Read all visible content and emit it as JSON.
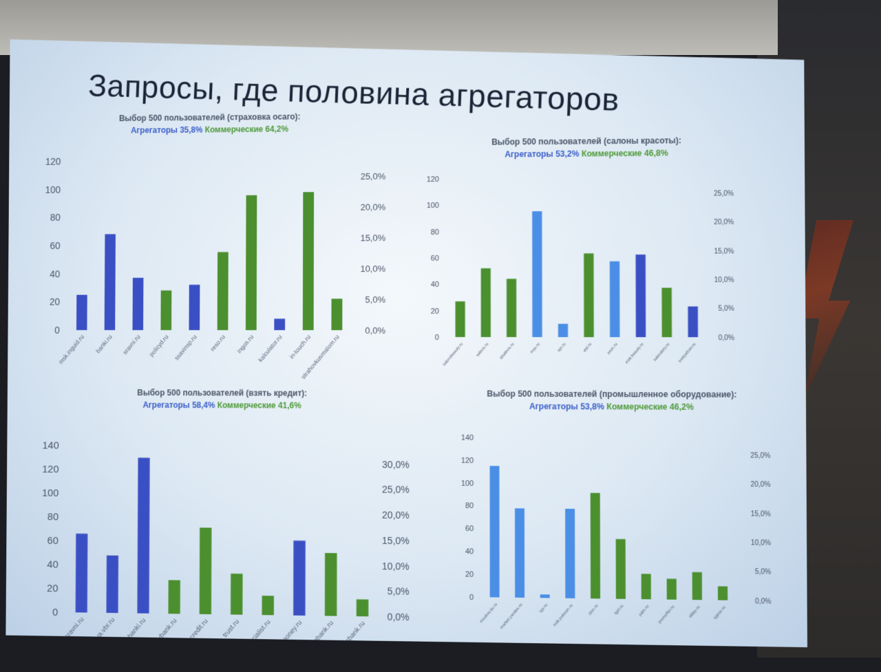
{
  "slide": {
    "title": "Запросы, где половина агрегаторов"
  },
  "colors": {
    "aggregator_dark": "#3b4fc4",
    "aggregator_light": "#4a8ee6",
    "commercial": "#4b8f2f"
  },
  "chart_data": [
    {
      "type": "bar",
      "title": "Выбор 500 пользователей (страховка осаго):",
      "subtitle_aggregators": "Агрегаторы 35,8%",
      "subtitle_commercial": "Коммерческие 64,2%",
      "ylim": [
        0,
        120
      ],
      "yticks": [
        "0",
        "20",
        "40",
        "60",
        "80",
        "100",
        "120"
      ],
      "y2ticks": [
        "0,0%",
        "5,0%",
        "10,0%",
        "15,0%",
        "20,0%",
        "25,0%"
      ],
      "categories": [
        "msk.inguid.ru",
        "banki.ru",
        "sravni.ru",
        "policyd.ru",
        "ssavinsp.ru",
        "reso.ru",
        "ingos.ru",
        "kalculator.ru",
        "in-touch.ru",
        "strahovkusmalom.ru"
      ],
      "values": [
        25,
        68,
        37,
        28,
        32,
        55,
        95,
        8,
        97,
        22
      ],
      "groups": [
        "aggregator_dark",
        "aggregator_dark",
        "aggregator_dark",
        "commercial",
        "aggregator_dark",
        "commercial",
        "commercial",
        "aggregator_dark",
        "commercial",
        "commercial"
      ]
    },
    {
      "type": "bar",
      "title": "Выбор 500 пользователей (салоны красоты):",
      "subtitle_aggregators": "Агрегаторы 53,2%",
      "subtitle_commercial": "Коммерческие 46,8%",
      "ylim": [
        0,
        120
      ],
      "yticks": [
        "0",
        "20",
        "40",
        "60",
        "80",
        "100",
        "120"
      ],
      "y2ticks": [
        "0,0%",
        "5,0%",
        "10,0%",
        "15,0%",
        "20,0%",
        "25,0%"
      ],
      "categories": [
        "salonsbeauty.ru",
        "salons.ru",
        "idsalons.ru",
        "msu.ru",
        "spr.ru",
        "etd.ru",
        "zoon.ru",
        "msk.beauty.ru",
        "salondery.ru",
        "svetyafcev.ru"
      ],
      "values": [
        27,
        52,
        44,
        95,
        10,
        63,
        57,
        62,
        37,
        23
      ],
      "groups": [
        "commercial",
        "commercial",
        "commercial",
        "aggregator_light",
        "aggregator_light",
        "commercial",
        "aggregator_light",
        "aggregator_dark",
        "commercial",
        "aggregator_dark"
      ]
    },
    {
      "type": "bar",
      "title": "Выбор 500 пользователей (взять кредит):",
      "subtitle_aggregators": "Агрегаторы 58,4%",
      "subtitle_commercial": "Коммерческие 41,6%",
      "ylim": [
        0,
        140
      ],
      "yticks": [
        "0",
        "20",
        "40",
        "60",
        "80",
        "100",
        "120",
        "140"
      ],
      "y2ticks": [
        "0,0%",
        "5,0%",
        "10,0%",
        "15,0%",
        "20,0%",
        "25,0%",
        "30,0%"
      ],
      "categories": [
        "sravni.ru",
        "moskva.vbr.ru",
        "banki.ru",
        "vbank.ru",
        "homecredit.ru",
        "trust.ru",
        "financialist.ru",
        "creditsmoney.ru",
        "pochtabank.ru",
        "rgsbank.ru"
      ],
      "values": [
        66,
        48,
        130,
        28,
        72,
        34,
        16,
        62,
        52,
        14
      ],
      "groups": [
        "aggregator_dark",
        "aggregator_dark",
        "aggregator_dark",
        "commercial",
        "commercial",
        "commercial",
        "commercial",
        "aggregator_dark",
        "commercial",
        "commercial"
      ]
    },
    {
      "type": "bar",
      "title": "Выбор 500 пользователей (промышленное оборудование):",
      "subtitle_aggregators": "Агрегаторы 53,8%",
      "subtitle_commercial": "Коммерческие 46,2%",
      "ylim": [
        0,
        140
      ],
      "yticks": [
        "0",
        "20",
        "40",
        "60",
        "80",
        "100",
        "120",
        "140"
      ],
      "y2ticks": [
        "0,0%",
        "5,0%",
        "10,0%",
        "15,0%",
        "20,0%",
        "25,0%"
      ],
      "categories": [
        "moskva.tiu.ru",
        "market.yandex.ru",
        "spr.ru",
        "msk.pulscen.ru",
        "stnn.ru",
        "tgirl.ru",
        "pdm.ru",
        "promoffer.ru",
        "sibkp.ru",
        "sgeso.ru"
      ],
      "values": [
        115,
        78,
        3,
        78,
        92,
        52,
        22,
        18,
        24,
        12
      ],
      "groups": [
        "aggregator_light",
        "aggregator_light",
        "aggregator_light",
        "aggregator_light",
        "commercial",
        "commercial",
        "commercial",
        "commercial",
        "commercial",
        "commercial"
      ]
    }
  ]
}
